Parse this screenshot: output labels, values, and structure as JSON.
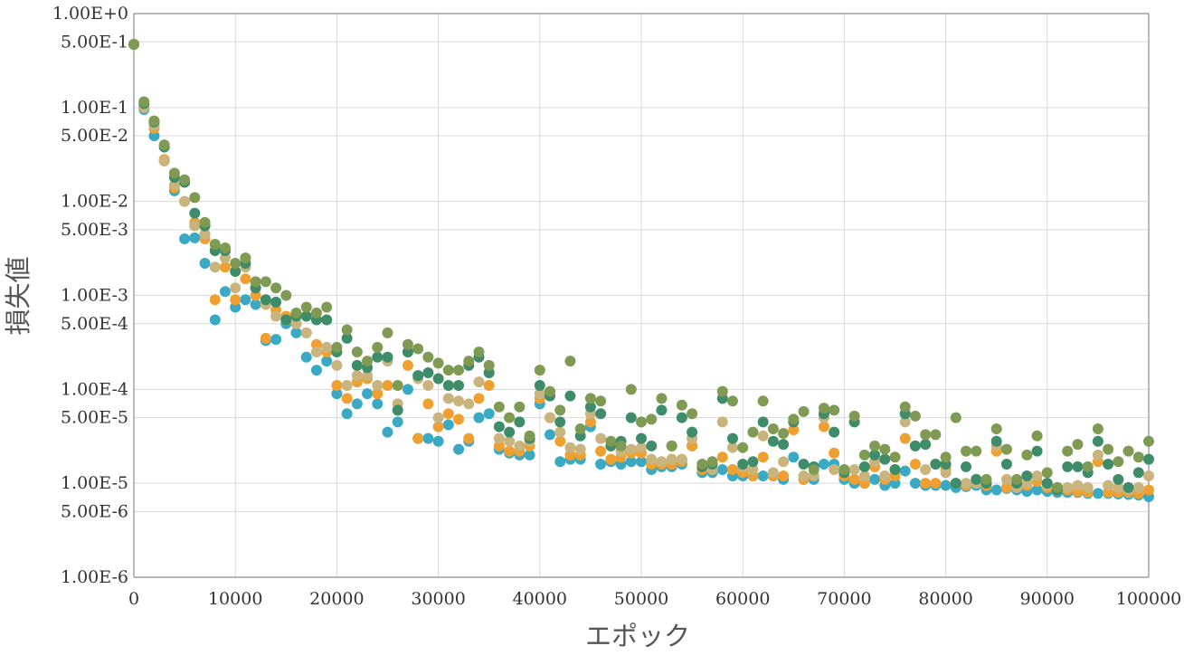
{
  "chart_data": {
    "type": "scatter",
    "title": "",
    "xlabel": "エポック",
    "ylabel": "損失値",
    "xlim": [
      0,
      100000
    ],
    "ylim": [
      1e-06,
      1
    ],
    "yscale": "log",
    "grid": true,
    "x_ticks": [
      {
        "value": 0,
        "label": "0"
      },
      {
        "value": 10000,
        "label": "10000"
      },
      {
        "value": 20000,
        "label": "20000"
      },
      {
        "value": 30000,
        "label": "30000"
      },
      {
        "value": 40000,
        "label": "40000"
      },
      {
        "value": 50000,
        "label": "50000"
      },
      {
        "value": 60000,
        "label": "60000"
      },
      {
        "value": 70000,
        "label": "70000"
      },
      {
        "value": 80000,
        "label": "80000"
      },
      {
        "value": 90000,
        "label": "90000"
      },
      {
        "value": 100000,
        "label": "100000"
      }
    ],
    "y_ticks": [
      {
        "value": 1,
        "label": "1.00E+0"
      },
      {
        "value": 0.5,
        "label": "5.00E-1"
      },
      {
        "value": 0.1,
        "label": "1.00E-1"
      },
      {
        "value": 0.05,
        "label": "5.00E-2"
      },
      {
        "value": 0.01,
        "label": "1.00E-2"
      },
      {
        "value": 0.005,
        "label": "5.00E-3"
      },
      {
        "value": 0.001,
        "label": "1.00E-3"
      },
      {
        "value": 0.0005,
        "label": "5.00E-4"
      },
      {
        "value": 0.0001,
        "label": "1.00E-4"
      },
      {
        "value": 5e-05,
        "label": "5.00E-5"
      },
      {
        "value": 1e-05,
        "label": "1.00E-5"
      },
      {
        "value": 5e-06,
        "label": "5.00E-6"
      },
      {
        "value": 1e-06,
        "label": "1.00E-6"
      }
    ],
    "x": [
      0,
      1000,
      2000,
      3000,
      4000,
      5000,
      6000,
      7000,
      8000,
      9000,
      10000,
      11000,
      12000,
      13000,
      14000,
      15000,
      16000,
      17000,
      18000,
      19000,
      20000,
      21000,
      22000,
      23000,
      24000,
      25000,
      26000,
      27000,
      28000,
      29000,
      30000,
      31000,
      32000,
      33000,
      34000,
      35000,
      36000,
      37000,
      38000,
      39000,
      40000,
      41000,
      42000,
      43000,
      44000,
      45000,
      46000,
      47000,
      48000,
      49000,
      50000,
      51000,
      52000,
      53000,
      54000,
      55000,
      56000,
      57000,
      58000,
      59000,
      60000,
      61000,
      62000,
      63000,
      64000,
      65000,
      66000,
      67000,
      68000,
      69000,
      70000,
      71000,
      72000,
      73000,
      74000,
      75000,
      76000,
      77000,
      78000,
      79000,
      80000,
      81000,
      82000,
      83000,
      84000,
      85000,
      86000,
      87000,
      88000,
      89000,
      90000,
      91000,
      92000,
      93000,
      94000,
      95000,
      96000,
      97000,
      98000,
      99000,
      100000
    ],
    "series": [
      {
        "color": "#3aaac4",
        "values": [
          0.47,
          0.095,
          0.05,
          0.027,
          0.013,
          0.004,
          0.0041,
          0.0022,
          0.00055,
          0.0011,
          0.00075,
          0.0009,
          0.0008,
          0.00033,
          0.00034,
          0.0005,
          0.0004,
          0.00022,
          0.00016,
          0.0002,
          9e-05,
          5.5e-05,
          7e-05,
          9e-05,
          7e-05,
          3.5e-05,
          4.5e-05,
          0.0001,
          3e-05,
          3e-05,
          2.8e-05,
          4.2e-05,
          2.3e-05,
          2.8e-05,
          5e-05,
          5.5e-05,
          2.3e-05,
          2.1e-05,
          2e-05,
          2e-05,
          7e-05,
          3.3e-05,
          1.7e-05,
          1.8e-05,
          1.8e-05,
          4e-05,
          1.6e-05,
          1.7e-05,
          1.6e-05,
          1.7e-05,
          1.7e-05,
          1.4e-05,
          1.5e-05,
          1.5e-05,
          1.6e-05,
          2.5e-05,
          1.3e-05,
          1.3e-05,
          1.4e-05,
          1.2e-05,
          1.2e-05,
          1.2e-05,
          1.2e-05,
          1.2e-05,
          1.1e-05,
          1.9e-05,
          1.1e-05,
          1.1e-05,
          1.6e-05,
          1.6e-05,
          1.1e-05,
          1e-05,
          1e-05,
          1.1e-05,
          9.5e-06,
          1e-05,
          1.35e-05,
          1e-05,
          9.5e-06,
          9.5e-06,
          9.5e-06,
          9e-06,
          9.2e-06,
          9.5e-06,
          8.5e-06,
          8.5e-06,
          8.8e-06,
          8.5e-06,
          8.2e-06,
          8.5e-06,
          8.2e-06,
          8e-06,
          8e-06,
          8e-06,
          7.8e-06,
          7.8e-06,
          7.8e-06,
          7.7e-06,
          7.6e-06,
          7.5e-06,
          7.2e-06
        ]
      },
      {
        "color": "#f0a030",
        "values": [
          0.47,
          0.1,
          0.06,
          0.028,
          0.014,
          0.01,
          0.006,
          0.004,
          0.0009,
          0.002,
          0.0009,
          0.0015,
          0.001,
          0.00035,
          0.0007,
          0.0006,
          0.0005,
          0.0004,
          0.0003,
          0.00025,
          0.00011,
          8e-05,
          0.00012,
          0.00013,
          9e-05,
          0.00011,
          6e-05,
          0.00018,
          3e-05,
          7e-05,
          4e-05,
          5.5e-05,
          4.8e-05,
          3e-05,
          8e-05,
          0.00011,
          2.5e-05,
          2.2e-05,
          2.2e-05,
          2.5e-05,
          8e-05,
          5e-05,
          2.8e-05,
          2e-05,
          2e-05,
          4.5e-05,
          2.2e-05,
          1.8e-05,
          1.9e-05,
          2.1e-05,
          2.1e-05,
          1.6e-05,
          1.6e-05,
          1.6e-05,
          1.7e-05,
          2.5e-05,
          1.4e-05,
          1.4e-05,
          1.9e-05,
          1.4e-05,
          1.3e-05,
          1.2e-05,
          1.9e-05,
          1.2e-05,
          1.2e-05,
          3.7e-05,
          1.1e-05,
          1.2e-05,
          4e-05,
          2.1e-05,
          1.2e-05,
          1.1e-05,
          1e-05,
          1.5e-05,
          1.1e-05,
          1.2e-05,
          3e-05,
          1.6e-05,
          1e-05,
          1e-05,
          1.4e-05,
          1e-05,
          9.5e-06,
          1e-05,
          9.5e-06,
          2.2e-05,
          9e-06,
          9.5e-06,
          9.5e-06,
          1.05e-05,
          9e-06,
          8.5e-06,
          8.5e-06,
          8.2e-06,
          8e-06,
          1.7e-05,
          8e-06,
          8e-06,
          8e-06,
          7.8e-06,
          8.5e-06
        ]
      },
      {
        "color": "#c9b47e",
        "values": [
          0.47,
          0.1,
          0.065,
          0.027,
          0.015,
          0.01,
          0.0055,
          0.0045,
          0.002,
          0.0025,
          0.0012,
          0.002,
          0.0012,
          0.0008,
          0.0006,
          0.00055,
          0.0005,
          0.0004,
          0.00025,
          0.00028,
          0.00018,
          0.00011,
          0.00014,
          0.00014,
          0.00011,
          0.0002,
          7e-05,
          0.00025,
          0.00013,
          0.00011,
          5e-05,
          8e-05,
          7.5e-05,
          7e-05,
          0.00012,
          0.00015,
          3e-05,
          2.8e-05,
          2.5e-05,
          2.8e-05,
          9e-05,
          5e-05,
          3.5e-05,
          2.4e-05,
          2.3e-05,
          5.5e-05,
          3e-05,
          2.5e-05,
          2.2e-05,
          2.3e-05,
          2.4e-05,
          1.8e-05,
          1.7e-05,
          1.8e-05,
          1.8e-05,
          3e-05,
          1.5e-05,
          1.4e-05,
          4.5e-05,
          2.4e-05,
          1.5e-05,
          1.4e-05,
          3.2e-05,
          1.3e-05,
          1.7e-05,
          4.5e-05,
          1.2e-05,
          1.2e-05,
          5e-05,
          1.4e-05,
          1.3e-05,
          1.4e-05,
          1.2e-05,
          1.7e-05,
          1.2e-05,
          1.4e-05,
          4.5e-05,
          2.5e-05,
          1.4e-05,
          1.6e-05,
          1.3e-05,
          1e-05,
          1e-05,
          1e-05,
          1e-05,
          2.5e-05,
          1.1e-05,
          9e-06,
          1e-05,
          1.2e-05,
          9.5e-06,
          9e-06,
          9e-06,
          9.5e-06,
          9e-06,
          2e-05,
          9.5e-06,
          9e-06,
          8.5e-06,
          9e-06,
          1.2e-05
        ]
      },
      {
        "color": "#3e8c6a",
        "values": [
          0.47,
          0.11,
          0.07,
          0.038,
          0.018,
          0.016,
          0.0075,
          0.0055,
          0.003,
          0.003,
          0.0018,
          0.0022,
          0.0012,
          0.0009,
          0.00085,
          0.00055,
          0.0006,
          0.0006,
          0.00055,
          0.00055,
          0.00025,
          0.00035,
          0.00018,
          0.00017,
          0.00022,
          0.00022,
          6e-05,
          0.00025,
          0.00014,
          0.00015,
          0.00013,
          0.00011,
          0.00011,
          0.00018,
          0.00022,
          0.00015,
          4e-05,
          3.5e-05,
          4.5e-05,
          3e-05,
          0.00011,
          8.5e-05,
          4.5e-05,
          8.5e-05,
          3.2e-05,
          6.5e-05,
          5.5e-05,
          2.5e-05,
          2.8e-05,
          5e-05,
          3e-05,
          2.5e-05,
          6e-05,
          2.5e-05,
          5e-05,
          3.5e-05,
          1.5e-05,
          1.6e-05,
          8e-05,
          3e-05,
          1.6e-05,
          1.7e-05,
          4.5e-05,
          2.8e-05,
          2.6e-05,
          4.5e-05,
          1.6e-05,
          1.5e-05,
          5.5e-05,
          3.5e-05,
          1.3e-05,
          4.5e-05,
          1.5e-05,
          2e-05,
          1.8e-05,
          1.4e-05,
          5.5e-05,
          2.5e-05,
          2.6e-05,
          1.6e-05,
          1.6e-05,
          1e-05,
          1.5e-05,
          1.1e-05,
          1e-05,
          2.8e-05,
          1.6e-05,
          1e-05,
          1.2e-05,
          2.2e-05,
          1e-05,
          8.5e-06,
          1.5e-05,
          1.5e-05,
          1.3e-05,
          2.8e-05,
          1.6e-05,
          1.1e-05,
          9e-06,
          1.3e-05,
          1.8e-05
        ]
      },
      {
        "color": "#7f9a52",
        "values": [
          0.47,
          0.115,
          0.072,
          0.04,
          0.02,
          0.017,
          0.011,
          0.006,
          0.0035,
          0.0032,
          0.0022,
          0.0025,
          0.0014,
          0.0014,
          0.0012,
          0.001,
          0.00065,
          0.00075,
          0.00065,
          0.00075,
          0.00028,
          0.00043,
          0.00025,
          0.0002,
          0.00028,
          0.0004,
          0.00011,
          0.0003,
          0.00027,
          0.00022,
          0.00019,
          0.00016,
          0.00016,
          0.0002,
          0.00025,
          0.00018,
          6.5e-05,
          5e-05,
          6.5e-05,
          3.2e-05,
          0.00016,
          9.5e-05,
          6e-05,
          0.0002,
          3.8e-05,
          8e-05,
          7.5e-05,
          2.8e-05,
          2.5e-05,
          0.0001,
          4.5e-05,
          4.8e-05,
          8e-05,
          2.5e-05,
          6.8e-05,
          5.5e-05,
          1.6e-05,
          1.7e-05,
          9.5e-05,
          7.5e-05,
          2.4e-05,
          3.5e-05,
          7.5e-05,
          3.8e-05,
          3.4e-05,
          4.8e-05,
          5.8e-05,
          1.4e-05,
          6.3e-05,
          6e-05,
          1.4e-05,
          5.2e-05,
          2e-05,
          2.5e-05,
          2.3e-05,
          1.9e-05,
          6.5e-05,
          5.2e-05,
          3.3e-05,
          3.3e-05,
          1.9e-05,
          5e-05,
          2.2e-05,
          2.2e-05,
          1.1e-05,
          3.8e-05,
          2.3e-05,
          1.1e-05,
          2e-05,
          3.2e-05,
          1.3e-05,
          9e-06,
          2.2e-05,
          2.6e-05,
          1.5e-05,
          3.8e-05,
          2.3e-05,
          1.7e-05,
          2.2e-05,
          1.9e-05,
          2.8e-05
        ]
      }
    ]
  }
}
